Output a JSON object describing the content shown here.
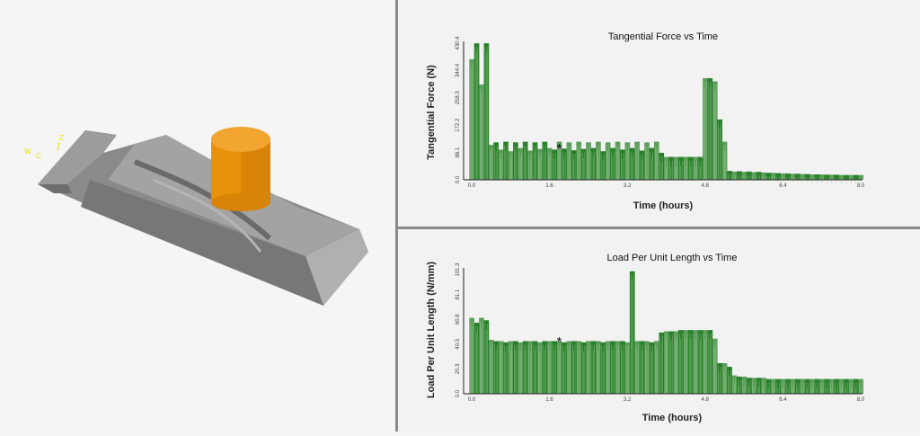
{
  "viewport": {
    "axis_labels": [
      "W",
      "C",
      "Z"
    ],
    "tool_color": "#e89a10",
    "part_color": "#8c8c8c"
  },
  "chart_data": [
    {
      "type": "bar",
      "title": "Tangential Force vs Time",
      "xlabel": "Time (hours)",
      "ylabel": "Tangential Force (N)",
      "xlim": [
        0,
        8
      ],
      "ylim": [
        0,
        430.4
      ],
      "xticks": [
        "0.0",
        "1.6",
        "3.2",
        "4.8",
        "6.4",
        "8.0"
      ],
      "yticks": [
        "0.0",
        "86.1",
        "172.2",
        "258.3",
        "344.4",
        "430.4"
      ],
      "marker": {
        "x": 1.8,
        "y": 100
      },
      "color": "#1e7a1e",
      "x_step": 0.1,
      "values": [
        380,
        430,
        300,
        430,
        110,
        118,
        95,
        120,
        90,
        118,
        100,
        120,
        92,
        118,
        97,
        120,
        100,
        95,
        120,
        98,
        118,
        93,
        120,
        97,
        118,
        100,
        120,
        90,
        118,
        100,
        120,
        95,
        118,
        100,
        120,
        92,
        118,
        100,
        120,
        85,
        72,
        72,
        72,
        72,
        72,
        72,
        72,
        72,
        320,
        320,
        310,
        190,
        120,
        28,
        26,
        27,
        25,
        26,
        24,
        25,
        23,
        22,
        22,
        21,
        20,
        20,
        19,
        19,
        18,
        18,
        17,
        17,
        17,
        16,
        16,
        16,
        15,
        15,
        15,
        15,
        15
      ]
    },
    {
      "type": "bar",
      "title": "Load Per Unit Length vs Time",
      "xlabel": "Time (hours)",
      "ylabel": "Load Per Unit Length (N/mm)",
      "xlim": [
        0,
        8
      ],
      "ylim": [
        0,
        101.3
      ],
      "xticks": [
        "0.0",
        "1.6",
        "3.2",
        "4.8",
        "6.4",
        "8.0"
      ],
      "yticks": [
        "0.0",
        "20.3",
        "40.5",
        "60.8",
        "81.1",
        "101.3"
      ],
      "marker": {
        "x": 1.8,
        "y": 43
      },
      "color": "#1e7a1e",
      "x_step": 0.1,
      "values": [
        62,
        58,
        62,
        60,
        44,
        43,
        43,
        42,
        43,
        43,
        42,
        43,
        43,
        43,
        42,
        43,
        43,
        43,
        43,
        42,
        43,
        43,
        43,
        42,
        43,
        43,
        43,
        42,
        43,
        43,
        43,
        43,
        42,
        100,
        43,
        43,
        43,
        42,
        43,
        50,
        51,
        51,
        51,
        52,
        52,
        52,
        52,
        52,
        52,
        52,
        45,
        25,
        25,
        22,
        15,
        14,
        14,
        13,
        13,
        13,
        13,
        12,
        12,
        12,
        12,
        12,
        12,
        12,
        12,
        12,
        12,
        12,
        12,
        12,
        12,
        12,
        12,
        12,
        12,
        12,
        12
      ]
    }
  ]
}
